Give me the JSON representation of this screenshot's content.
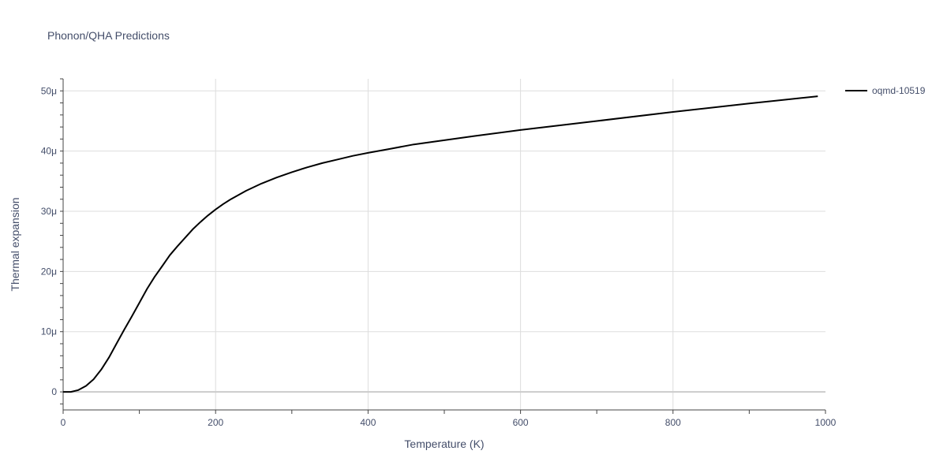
{
  "chart_data": {
    "type": "line",
    "title": "Phonon/QHA Predictions",
    "xlabel": "Temperature (K)",
    "ylabel": "Thermal expansion",
    "xlim": [
      0,
      1000
    ],
    "ylim": [
      -3e-06,
      5.2e-05
    ],
    "x_ticks": [
      0,
      200,
      400,
      600,
      800,
      1000
    ],
    "x_tick_labels": [
      "0",
      "200",
      "400",
      "600",
      "800",
      "1000"
    ],
    "y_ticks": [
      0,
      1e-05,
      2e-05,
      3e-05,
      4e-05,
      5e-05
    ],
    "y_tick_labels": [
      "0",
      "10μ",
      "20μ",
      "30μ",
      "40μ",
      "50μ"
    ],
    "grid": true,
    "legend_position": "top-right",
    "series": [
      {
        "name": "oqmd-10519",
        "color": "#000000",
        "x": [
          0,
          10,
          20,
          30,
          40,
          50,
          60,
          70,
          80,
          90,
          100,
          110,
          120,
          130,
          140,
          150,
          160,
          170,
          180,
          190,
          200,
          210,
          220,
          240,
          260,
          280,
          300,
          320,
          340,
          360,
          380,
          400,
          430,
          460,
          500,
          540,
          600,
          700,
          800,
          900,
          990
        ],
        "y": [
          0,
          0,
          3e-07,
          1e-06,
          2.1e-06,
          3.7e-06,
          5.7e-06,
          8e-06,
          1.03e-05,
          1.25e-05,
          1.48e-05,
          1.71e-05,
          1.91e-05,
          2.09e-05,
          2.27e-05,
          2.42e-05,
          2.56e-05,
          2.7e-05,
          2.82e-05,
          2.93e-05,
          3.03e-05,
          3.12e-05,
          3.2e-05,
          3.34e-05,
          3.46e-05,
          3.56e-05,
          3.65e-05,
          3.73e-05,
          3.8e-05,
          3.86e-05,
          3.92e-05,
          3.97e-05,
          4.04e-05,
          4.11e-05,
          4.18e-05,
          4.25e-05,
          4.35e-05,
          4.5e-05,
          4.65e-05,
          4.79e-05,
          4.91e-05
        ]
      }
    ]
  }
}
